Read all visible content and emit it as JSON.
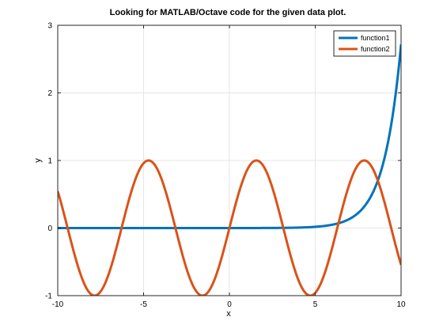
{
  "chart_data": {
    "type": "line",
    "title": "Looking for MATLAB/Octave code for the given data plot.",
    "xlabel": "x",
    "ylabel": "y",
    "xlim": [
      -10,
      10
    ],
    "ylim": [
      -1,
      3
    ],
    "xticks": [
      -10,
      -5,
      0,
      5,
      10
    ],
    "yticks": [
      -1,
      0,
      1,
      2,
      3
    ],
    "grid": true,
    "legend_position": "top-right",
    "series": [
      {
        "name": "function1",
        "color": "#0072bd",
        "x": [
          -10,
          -8,
          -6,
          -4,
          -2,
          0,
          2,
          4,
          5,
          6,
          7,
          7.5,
          8,
          8.5,
          9,
          9.5,
          10
        ],
        "y": [
          0,
          0,
          0,
          0,
          0,
          0,
          0.0005,
          0.003,
          0.008,
          0.02,
          0.055,
          0.09,
          0.149,
          0.246,
          0.406,
          0.67,
          2.72
        ]
      },
      {
        "name": "function2",
        "color": "#d95319",
        "x": [
          -10,
          -9.42,
          -7.85,
          -6.28,
          -4.71,
          -3.14,
          -1.57,
          0,
          1.57,
          3.14,
          4.71,
          6.28,
          7.85,
          9.42,
          10
        ],
        "y": [
          0.544,
          0,
          -1,
          0,
          1,
          0,
          -1,
          0,
          1,
          0,
          -1,
          0,
          1,
          0,
          -0.544
        ]
      }
    ]
  }
}
